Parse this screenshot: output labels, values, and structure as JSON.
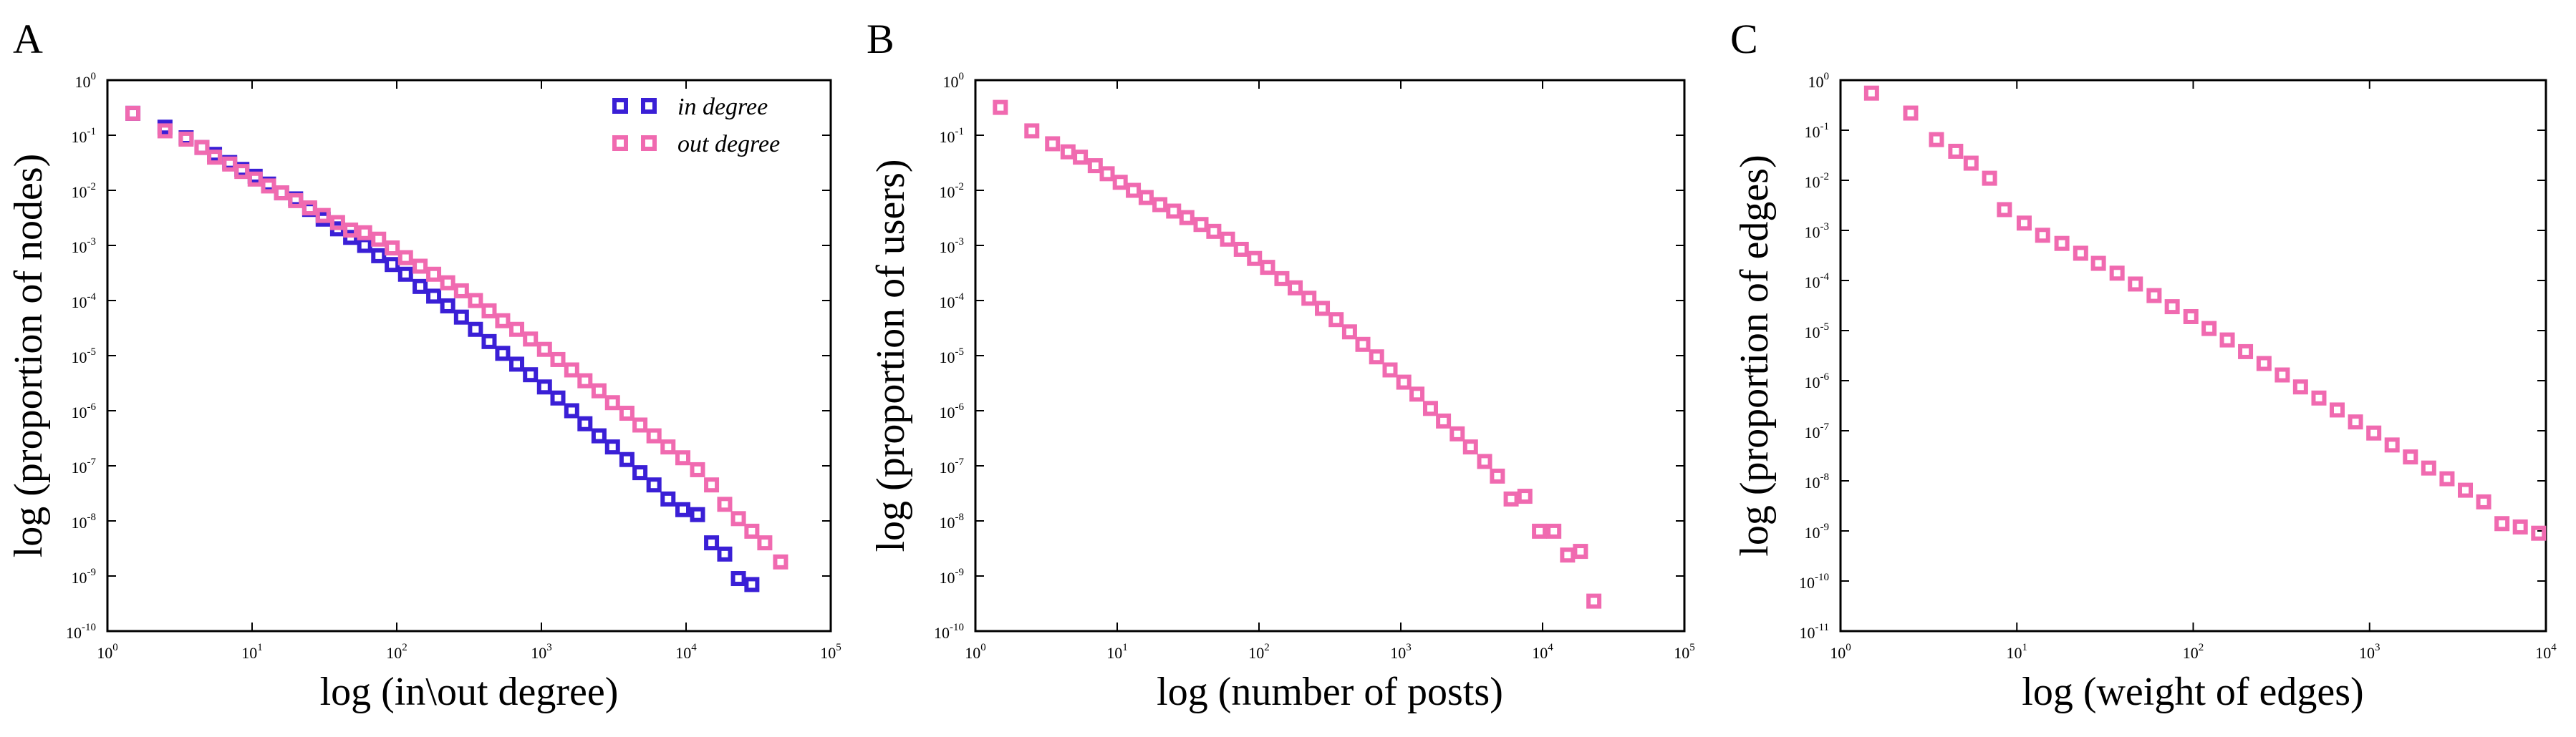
{
  "colors": {
    "in_degree": "#3a1fd6",
    "out_degree": "#f06ab0"
  },
  "chart_data": [
    {
      "panel": "A",
      "type": "scatter",
      "xscale": "log",
      "yscale": "log",
      "xlabel": "log (in\\out degree)",
      "ylabel": "log (proportion of nodes)",
      "xlim_exp": [
        0,
        5
      ],
      "ylim_exp": [
        -10,
        0
      ],
      "legend": "top-right",
      "series": [
        {
          "name": "in degree",
          "color": "#3a1fd6",
          "x": [
            1.5,
            2.5,
            3.5,
            4.5,
            5.5,
            7,
            8.5,
            10.5,
            13,
            16,
            20,
            25,
            31,
            39,
            48,
            60,
            75,
            93,
            115,
            145,
            180,
            225,
            280,
            350,
            435,
            540,
            675,
            840,
            1050,
            1300,
            1620,
            2000,
            2500,
            3100,
            3900,
            4800,
            6000,
            7500,
            9500,
            12000,
            15000,
            18500,
            23000,
            28500
          ],
          "y": [
            0.25,
            0.14,
            0.09,
            0.06,
            0.045,
            0.032,
            0.024,
            0.018,
            0.013,
            0.009,
            0.007,
            0.0045,
            0.003,
            0.002,
            0.0014,
            0.001,
            0.00065,
            0.00045,
            0.0003,
            0.00018,
            0.00012,
            8e-05,
            5e-05,
            3e-05,
            1.8e-05,
            1.1e-05,
            7e-06,
            4.5e-06,
            2.7e-06,
            1.7e-06,
            1e-06,
            5.8e-07,
            3.5e-07,
            2.2e-07,
            1.3e-07,
            7.5e-08,
            4.5e-08,
            2.5e-08,
            1.6e-08,
            1.3e-08,
            4e-09,
            2.5e-09,
            9e-10,
            7e-10
          ]
        },
        {
          "name": "out degree",
          "color": "#f06ab0",
          "x": [
            1.5,
            2.5,
            3.5,
            4.5,
            5.5,
            7,
            8.5,
            10.5,
            13,
            16,
            20,
            25,
            31,
            39,
            48,
            60,
            75,
            93,
            115,
            145,
            180,
            225,
            280,
            350,
            435,
            540,
            675,
            840,
            1050,
            1300,
            1620,
            2000,
            2500,
            3100,
            3900,
            4800,
            6000,
            7500,
            9500,
            12000,
            15000,
            18500,
            23000,
            28500,
            35000,
            45000
          ],
          "y": [
            0.25,
            0.12,
            0.085,
            0.06,
            0.04,
            0.03,
            0.022,
            0.016,
            0.012,
            0.009,
            0.0065,
            0.0048,
            0.0035,
            0.0026,
            0.0019,
            0.0017,
            0.0013,
            0.0009,
            0.0006,
            0.00042,
            0.0003,
            0.00021,
            0.00015,
            0.0001,
            6.5e-05,
            4.3e-05,
            3e-05,
            2e-05,
            1.3e-05,
            8.5e-06,
            5.5e-06,
            3.5e-06,
            2.3e-06,
            1.4e-06,
            9e-07,
            5.5e-07,
            3.5e-07,
            2.2e-07,
            1.4e-07,
            8.5e-08,
            4.5e-08,
            2e-08,
            1.1e-08,
            6.5e-09,
            4e-09,
            1.8e-09
          ]
        }
      ]
    },
    {
      "panel": "B",
      "type": "scatter",
      "xscale": "log",
      "yscale": "log",
      "xlabel": "log (number of posts)",
      "ylabel": "log (proportion of users)",
      "xlim_exp": [
        0,
        5
      ],
      "ylim_exp": [
        -10,
        0
      ],
      "series": [
        {
          "color": "#f06ab0",
          "x": [
            1.5,
            2.5,
            3.5,
            4.5,
            5.5,
            7,
            8.5,
            10.5,
            13,
            16,
            20,
            25,
            31,
            39,
            48,
            60,
            75,
            93,
            115,
            145,
            180,
            225,
            280,
            350,
            435,
            540,
            675,
            840,
            1050,
            1300,
            1620,
            2000,
            2500,
            3100,
            3900,
            4800,
            6000,
            7500,
            9500,
            12000,
            15000,
            18500,
            23000
          ],
          "y": [
            0.32,
            0.12,
            0.07,
            0.05,
            0.04,
            0.028,
            0.02,
            0.014,
            0.01,
            0.0074,
            0.0055,
            0.0042,
            0.0032,
            0.0024,
            0.0018,
            0.0013,
            0.00085,
            0.00058,
            0.0004,
            0.00025,
            0.00017,
            0.00011,
            7.2e-05,
            4.5e-05,
            2.7e-05,
            1.6e-05,
            9.5e-06,
            5.5e-06,
            3.3e-06,
            2e-06,
            1.1e-06,
            6.5e-07,
            3.8e-07,
            2.2e-07,
            1.2e-07,
            6.5e-08,
            2.5e-08,
            2.8e-08,
            6.5e-09,
            6.5e-09,
            2.4e-09,
            2.8e-09,
            3.5e-10
          ]
        }
      ]
    },
    {
      "panel": "C",
      "type": "scatter",
      "xscale": "log",
      "yscale": "log",
      "xlabel": "log (weight of edges)",
      "ylabel": "log (proportion of edges)",
      "xlim_exp": [
        0,
        4
      ],
      "ylim_exp": [
        -11,
        0
      ],
      "series": [
        {
          "color": "#f06ab0",
          "x": [
            1.5,
            2.5,
            3.5,
            4.5,
            5.5,
            7,
            8.5,
            11,
            14,
            18,
            23,
            29,
            37,
            47,
            60,
            76,
            97,
            123,
            156,
            198,
            252,
            320,
            406,
            516,
            655,
            832,
            1057,
            1342,
            1705,
            2165,
            2750,
            3493,
            4436,
            5634,
            7155,
            9088
          ],
          "y": [
            0.55,
            0.22,
            0.065,
            0.038,
            0.022,
            0.011,
            0.0026,
            0.0014,
            0.0008,
            0.00055,
            0.00035,
            0.00022,
            0.00014,
            8.5e-05,
            5e-05,
            3e-05,
            1.9e-05,
            1.1e-05,
            6.5e-06,
            3.8e-06,
            2.2e-06,
            1.3e-06,
            7.5e-07,
            4.5e-07,
            2.6e-07,
            1.5e-07,
            9e-08,
            5.2e-08,
            3e-08,
            1.8e-08,
            1.1e-08,
            6.5e-09,
            3.8e-09,
            1.4e-09,
            1.2e-09,
            9e-10
          ]
        }
      ]
    }
  ],
  "panels": [
    {
      "letter": "A",
      "xlabel": "log (in\\out degree)",
      "ylabel": "log (proportion of nodes)",
      "xticks": [
        {
          "b": "10",
          "e": "0"
        },
        {
          "b": "10",
          "e": "1"
        },
        {
          "b": "10",
          "e": "2"
        },
        {
          "b": "10",
          "e": "3"
        },
        {
          "b": "10",
          "e": "4"
        },
        {
          "b": "10",
          "e": "5"
        }
      ],
      "yticks": [
        {
          "b": "10",
          "e": "0"
        },
        {
          "b": "10",
          "e": "-1"
        },
        {
          "b": "10",
          "e": "-2"
        },
        {
          "b": "10",
          "e": "-3"
        },
        {
          "b": "10",
          "e": "-4"
        },
        {
          "b": "10",
          "e": "-5"
        },
        {
          "b": "10",
          "e": "-6"
        },
        {
          "b": "10",
          "e": "-7"
        },
        {
          "b": "10",
          "e": "-8"
        },
        {
          "b": "10",
          "e": "-9"
        },
        {
          "b": "10",
          "e": "-10"
        }
      ],
      "legend": [
        "in degree",
        "out degree"
      ]
    },
    {
      "letter": "B",
      "xlabel": "log (number of posts)",
      "ylabel": "log (proportion of users)",
      "xticks": [
        {
          "b": "10",
          "e": "0"
        },
        {
          "b": "10",
          "e": "1"
        },
        {
          "b": "10",
          "e": "2"
        },
        {
          "b": "10",
          "e": "3"
        },
        {
          "b": "10",
          "e": "4"
        },
        {
          "b": "10",
          "e": "5"
        }
      ],
      "yticks": [
        {
          "b": "10",
          "e": "0"
        },
        {
          "b": "10",
          "e": "-1"
        },
        {
          "b": "10",
          "e": "-2"
        },
        {
          "b": "10",
          "e": "-3"
        },
        {
          "b": "10",
          "e": "-4"
        },
        {
          "b": "10",
          "e": "-5"
        },
        {
          "b": "10",
          "e": "-6"
        },
        {
          "b": "10",
          "e": "-7"
        },
        {
          "b": "10",
          "e": "-8"
        },
        {
          "b": "10",
          "e": "-9"
        },
        {
          "b": "10",
          "e": "-10"
        }
      ]
    },
    {
      "letter": "C",
      "xlabel": "log (weight of edges)",
      "ylabel": "log (proportion of edges)",
      "xticks": [
        {
          "b": "10",
          "e": "0"
        },
        {
          "b": "10",
          "e": "1"
        },
        {
          "b": "10",
          "e": "2"
        },
        {
          "b": "10",
          "e": "3"
        },
        {
          "b": "10",
          "e": "4"
        }
      ],
      "yticks": [
        {
          "b": "10",
          "e": "0"
        },
        {
          "b": "10",
          "e": "-1"
        },
        {
          "b": "10",
          "e": "-2"
        },
        {
          "b": "10",
          "e": "-3"
        },
        {
          "b": "10",
          "e": "-4"
        },
        {
          "b": "10",
          "e": "-5"
        },
        {
          "b": "10",
          "e": "-6"
        },
        {
          "b": "10",
          "e": "-7"
        },
        {
          "b": "10",
          "e": "-8"
        },
        {
          "b": "10",
          "e": "-9"
        },
        {
          "b": "10",
          "e": "-10"
        },
        {
          "b": "10",
          "e": "-11"
        }
      ]
    }
  ]
}
